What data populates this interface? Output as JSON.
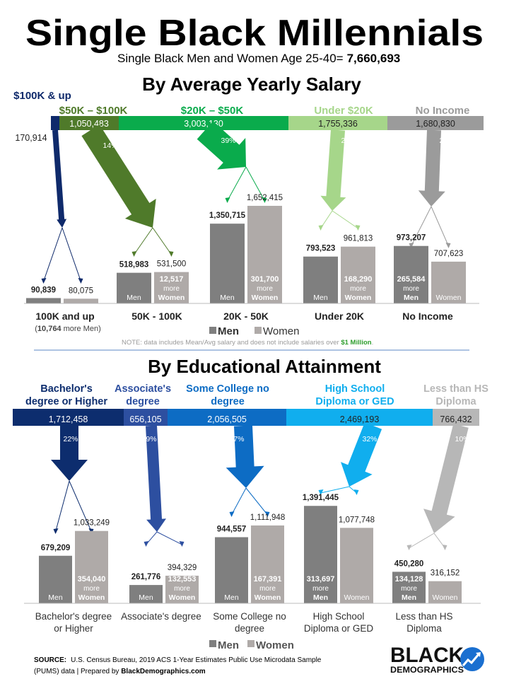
{
  "title": "Single Black Millennials",
  "subtitle_prefix": "Single Black Men and Women Age 25-40=",
  "subtitle_total": "7,660,693",
  "colors": {
    "men_bar": "#7f7f7f",
    "women_bar": "#afaaa8",
    "salary": [
      "#0f2a6b",
      "#4f7a2a",
      "#0aab4c",
      "#a6d68a",
      "#9b9b9b"
    ],
    "education": [
      "#0d2d6e",
      "#2d4fa0",
      "#0d6cc4",
      "#10aeee",
      "#b7b7b7"
    ],
    "note_highlight": "#2e9e2e"
  },
  "salary": {
    "heading": "By Average Yearly Salary",
    "groups": [
      {
        "label": "$100K & up",
        "total": "170,914",
        "pct": "2%",
        "men": "90,839",
        "women": "80,075",
        "men_tag": "",
        "women_tag": "",
        "diff_num": "",
        "diff_text": "",
        "diff_sex": "",
        "category": "100K and up",
        "category_note_num": "10,764",
        "category_note_text": "more Men"
      },
      {
        "label": "$50K – $100K",
        "total": "1,050,483",
        "pct": "14%",
        "men": "518,983",
        "women": "531,500",
        "men_tag": "Men",
        "women_tag": "",
        "diff_num": "12,517",
        "diff_text": "more",
        "diff_sex": "Women",
        "category": "50K - 100K"
      },
      {
        "label": "$20K – $50K",
        "total": "3,003,130",
        "pct": "39%",
        "men": "1,350,715",
        "women": "1,652,415",
        "men_tag": "Men",
        "women_tag": "",
        "diff_num": "301,700",
        "diff_text": "more",
        "diff_sex": "Women",
        "category": "20K - 50K"
      },
      {
        "label": "Under $20K",
        "total": "1,755,336",
        "pct": "23%",
        "men": "793,523",
        "women": "961,813",
        "men_tag": "Men",
        "women_tag": "",
        "diff_num": "168,290",
        "diff_text": "more",
        "diff_sex": "Women",
        "category": "Under 20K"
      },
      {
        "label": "No Income",
        "total": "1,680,830",
        "pct": "22%",
        "men": "973,207",
        "women": "707,623",
        "men_tag": "",
        "women_tag": "Women",
        "diff_num": "265,584",
        "diff_text": "more",
        "diff_sex": "Men",
        "category": "No Income"
      }
    ],
    "legend_men": "Men",
    "legend_women": "Women",
    "note_prefix": "NOTE: data includes Mean/Avg salary and does not include salaries over ",
    "note_highlight": "$1 Million",
    "note_suffix": "."
  },
  "education": {
    "heading": "By Educational Attainment",
    "groups": [
      {
        "label_l1": "Bachelor's",
        "label_l2": "degree or Higher",
        "total": "1,712,458",
        "pct": "22%",
        "men": "679,209",
        "women": "1,033,249",
        "men_tag": "Men",
        "women_tag": "",
        "diff_num": "354,040",
        "diff_text": "more",
        "diff_sex": "Women",
        "cat_l1": "Bachelor's degree",
        "cat_l2": "or Higher"
      },
      {
        "label_l1": "Associate's",
        "label_l2": "degree",
        "total": "656,105",
        "pct": "9%",
        "men": "261,776",
        "women": "394,329",
        "men_tag": "Men",
        "women_tag": "",
        "diff_num": "132,553",
        "diff_text": "more",
        "diff_sex": "Women",
        "cat_l1": "Associate's degree",
        "cat_l2": ""
      },
      {
        "label_l1": "Some College no",
        "label_l2": "degree",
        "total": "2,056,505",
        "pct": "27%",
        "men": "944,557",
        "women": "1,111,948",
        "men_tag": "Men",
        "women_tag": "",
        "diff_num": "167,391",
        "diff_text": "more",
        "diff_sex": "Women",
        "cat_l1": "Some College no",
        "cat_l2": "degree"
      },
      {
        "label_l1": "High School",
        "label_l2": "Diploma or GED",
        "total": "2,469,193",
        "pct": "32%",
        "men": "1,391,445",
        "women": "1,077,748",
        "men_tag": "",
        "women_tag": "Women",
        "diff_num": "313,697",
        "diff_text": "more",
        "diff_sex": "Men",
        "cat_l1": "High School",
        "cat_l2": "Diploma or GED"
      },
      {
        "label_l1": "Less than HS",
        "label_l2": "Diploma",
        "total": "766,432",
        "pct": "10%",
        "men": "450,280",
        "women": "316,152",
        "men_tag": "",
        "women_tag": "Women",
        "diff_num": "134,128",
        "diff_text": "more",
        "diff_sex": "Men",
        "cat_l1": "Less than HS",
        "cat_l2": "Diploma"
      }
    ],
    "legend_men": "Men",
    "legend_women": "Women"
  },
  "source_label": "SOURCE:",
  "source_text_1": "U.S. Census Bureau, 2019 ACS 1-Year Estimates Public Use Microdata Sample",
  "source_text_2": "(PUMS) data | Prepared by ",
  "source_link": "BlackDemographics",
  "source_link_suffix": ".com",
  "logo_line1": "BLACK",
  "logo_line2": "DEMOGRAPHICS",
  "chart_data": [
    {
      "type": "bar",
      "title": "By Average Yearly Salary",
      "categories": [
        "100K and up",
        "50K - 100K",
        "20K - 50K",
        "Under 20K",
        "No Income"
      ],
      "series": [
        {
          "name": "Men",
          "values": [
            90839,
            518983,
            1350715,
            793523,
            973207
          ]
        },
        {
          "name": "Women",
          "values": [
            80075,
            531500,
            1652415,
            961813,
            707623
          ]
        }
      ],
      "totals": [
        170914,
        1050483,
        3003130,
        1755336,
        1680830
      ],
      "shares_percent": [
        2,
        14,
        39,
        23,
        22
      ],
      "ylim": [
        0,
        1700000
      ]
    },
    {
      "type": "bar",
      "title": "By Educational Attainment",
      "categories": [
        "Bachelor's degree or Higher",
        "Associate's degree",
        "Some College no degree",
        "High School Diploma or GED",
        "Less than HS Diploma"
      ],
      "series": [
        {
          "name": "Men",
          "values": [
            679209,
            261776,
            944557,
            1391445,
            450280
          ]
        },
        {
          "name": "Women",
          "values": [
            1033249,
            394329,
            1111948,
            1077748,
            316152
          ]
        }
      ],
      "totals": [
        1712458,
        656105,
        2056505,
        2469193,
        766432
      ],
      "shares_percent": [
        22,
        9,
        27,
        32,
        10
      ],
      "ylim": [
        0,
        1400000
      ]
    }
  ]
}
